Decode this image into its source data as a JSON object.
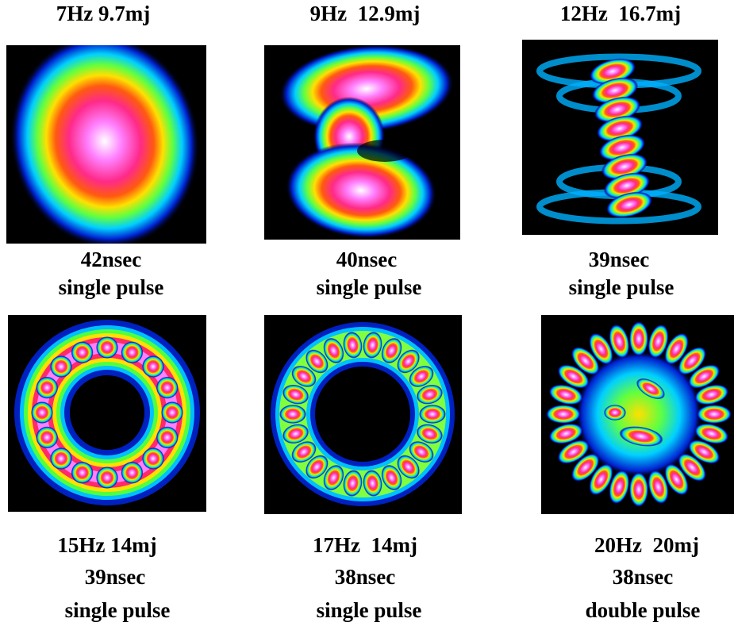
{
  "panels": [
    {
      "heading": "7Hz 9.7mj",
      "duration": "42nsec",
      "pulse": "single pulse"
    },
    {
      "heading": "9Hz  12.9mj",
      "duration": "40nsec",
      "pulse": "single pulse"
    },
    {
      "heading": "12Hz  16.7mj",
      "duration": "39nsec",
      "pulse": "single pulse"
    },
    {
      "heading": "15Hz 14mj",
      "duration": "39nsec",
      "pulse": "single pulse"
    },
    {
      "heading": "17Hz  14mj",
      "duration": "38nsec",
      "pulse": "single pulse"
    },
    {
      "heading": "20Hz  20mj",
      "duration": "38nsec",
      "pulse": "double pulse"
    }
  ]
}
